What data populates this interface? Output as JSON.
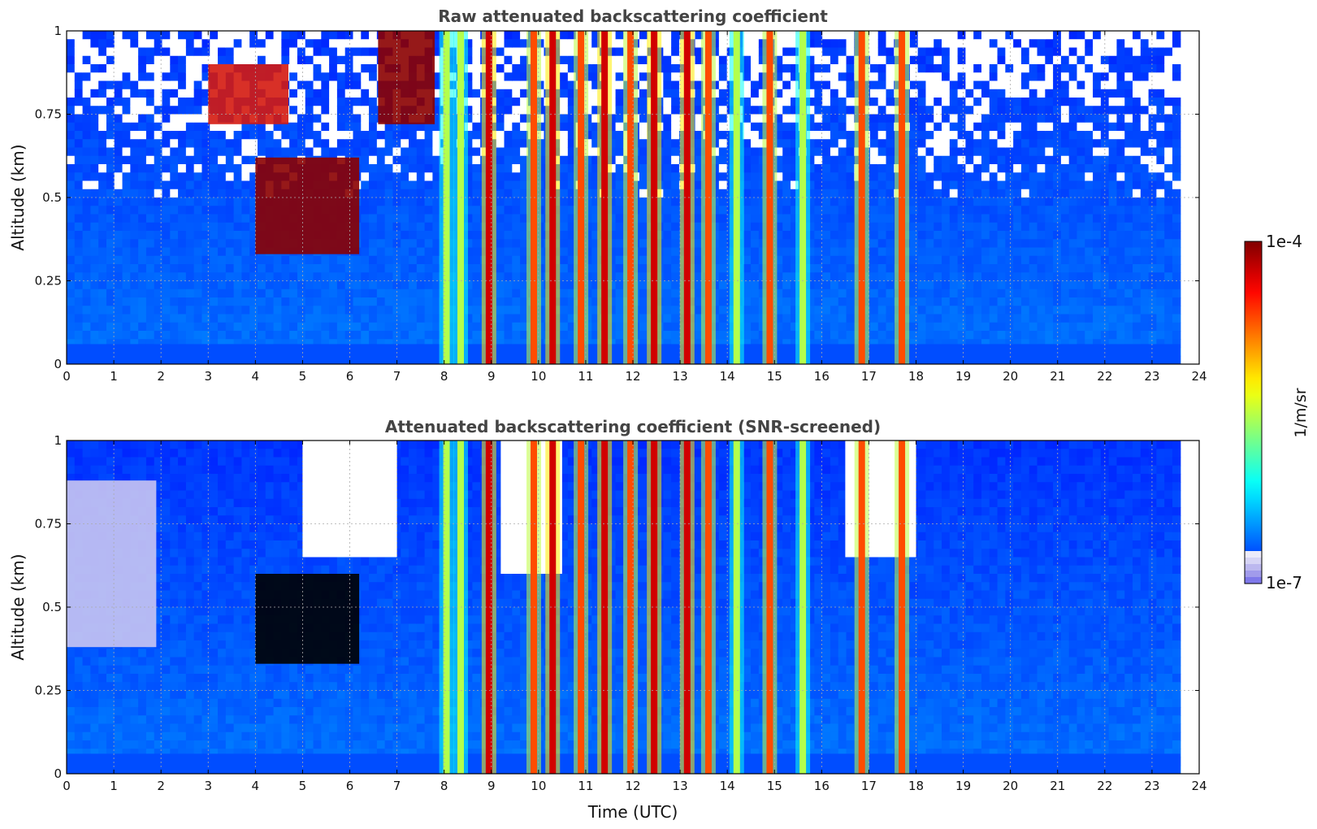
{
  "chart_data": [
    {
      "type": "heatmap",
      "title": "Raw attenuated backscattering coefficient",
      "xlabel": "",
      "ylabel": "Altitude (km)",
      "xlim": [
        0,
        24
      ],
      "ylim": [
        0,
        1
      ],
      "x_ticks": [
        "0",
        "1",
        "2",
        "3",
        "4",
        "5",
        "6",
        "7",
        "8",
        "9",
        "10",
        "11",
        "12",
        "13",
        "14",
        "15",
        "16",
        "17",
        "18",
        "19",
        "20",
        "21",
        "22",
        "23",
        "24"
      ],
      "y_ticks": [
        "0",
        "0.25",
        "0.5",
        "0.75",
        "1"
      ],
      "grid": true,
      "data_extent_hours": [
        0,
        23.6
      ],
      "background_level": "low (~2e-7 to 5e-7)",
      "features": [
        {
          "description": "Elevated dense aerosol/cloud layer",
          "time_range": [
            4.0,
            6.2
          ],
          "altitude_range": [
            0.33,
            0.62
          ],
          "level": "saturated (~1e-4)"
        },
        {
          "description": "High layer near top",
          "time_range": [
            6.6,
            7.8
          ],
          "altitude_range": [
            0.72,
            1.0
          ],
          "level": "saturated (~1e-4)"
        },
        {
          "description": "Thin high patches",
          "time_range": [
            3.0,
            4.7
          ],
          "altitude_range": [
            0.72,
            0.9
          ],
          "level": "high"
        }
      ],
      "vertical_streaks": [
        {
          "t": 8.05,
          "level": "medium"
        },
        {
          "t": 8.35,
          "level": "medium"
        },
        {
          "t": 8.95,
          "level": "saturated"
        },
        {
          "t": 9.9,
          "level": "high"
        },
        {
          "t": 10.3,
          "level": "saturated"
        },
        {
          "t": 10.9,
          "level": "high"
        },
        {
          "t": 11.4,
          "level": "saturated"
        },
        {
          "t": 11.95,
          "level": "high"
        },
        {
          "t": 12.45,
          "level": "saturated"
        },
        {
          "t": 13.15,
          "level": "saturated"
        },
        {
          "t": 13.6,
          "level": "high"
        },
        {
          "t": 14.2,
          "level": "medium"
        },
        {
          "t": 14.9,
          "level": "high"
        },
        {
          "t": 15.6,
          "level": "medium"
        },
        {
          "t": 16.85,
          "level": "high"
        },
        {
          "t": 17.7,
          "level": "high"
        }
      ]
    },
    {
      "type": "heatmap",
      "title": "Attenuated backscattering coefficient (SNR-screened)",
      "xlabel": "Time (UTC)",
      "ylabel": "Altitude (km)",
      "xlim": [
        0,
        24
      ],
      "ylim": [
        0,
        1
      ],
      "x_ticks": [
        "0",
        "1",
        "2",
        "3",
        "4",
        "5",
        "6",
        "7",
        "8",
        "9",
        "10",
        "11",
        "12",
        "13",
        "14",
        "15",
        "16",
        "17",
        "18",
        "19",
        "20",
        "21",
        "22",
        "23",
        "24"
      ],
      "y_ticks": [
        "0",
        "0.25",
        "0.5",
        "0.75",
        "1"
      ],
      "grid": true,
      "data_extent_hours": [
        0,
        23.6
      ],
      "screened_regions": [
        {
          "time_range": [
            5.0,
            7.0
          ],
          "altitude_range": [
            0.65,
            1.0
          ]
        },
        {
          "time_range": [
            9.2,
            10.5
          ],
          "altitude_range": [
            0.6,
            1.0
          ]
        },
        {
          "time_range": [
            16.5,
            18.0
          ],
          "altitude_range": [
            0.65,
            1.0
          ]
        }
      ],
      "features": [
        {
          "description": "Low-signal purple region",
          "time_range": [
            0.0,
            1.9
          ],
          "altitude_range": [
            0.38,
            0.88
          ],
          "level": "below range (~1e-7)"
        },
        {
          "description": "Elevated dense layer (saturated, black)",
          "time_range": [
            4.0,
            6.2
          ],
          "altitude_range": [
            0.33,
            0.6
          ],
          "level": "saturated"
        }
      ]
    }
  ],
  "colorbar": {
    "max_label": "1e-4",
    "min_label": "1e-7",
    "label": "1/m/sr",
    "scale": "log",
    "colormap": "jet"
  }
}
